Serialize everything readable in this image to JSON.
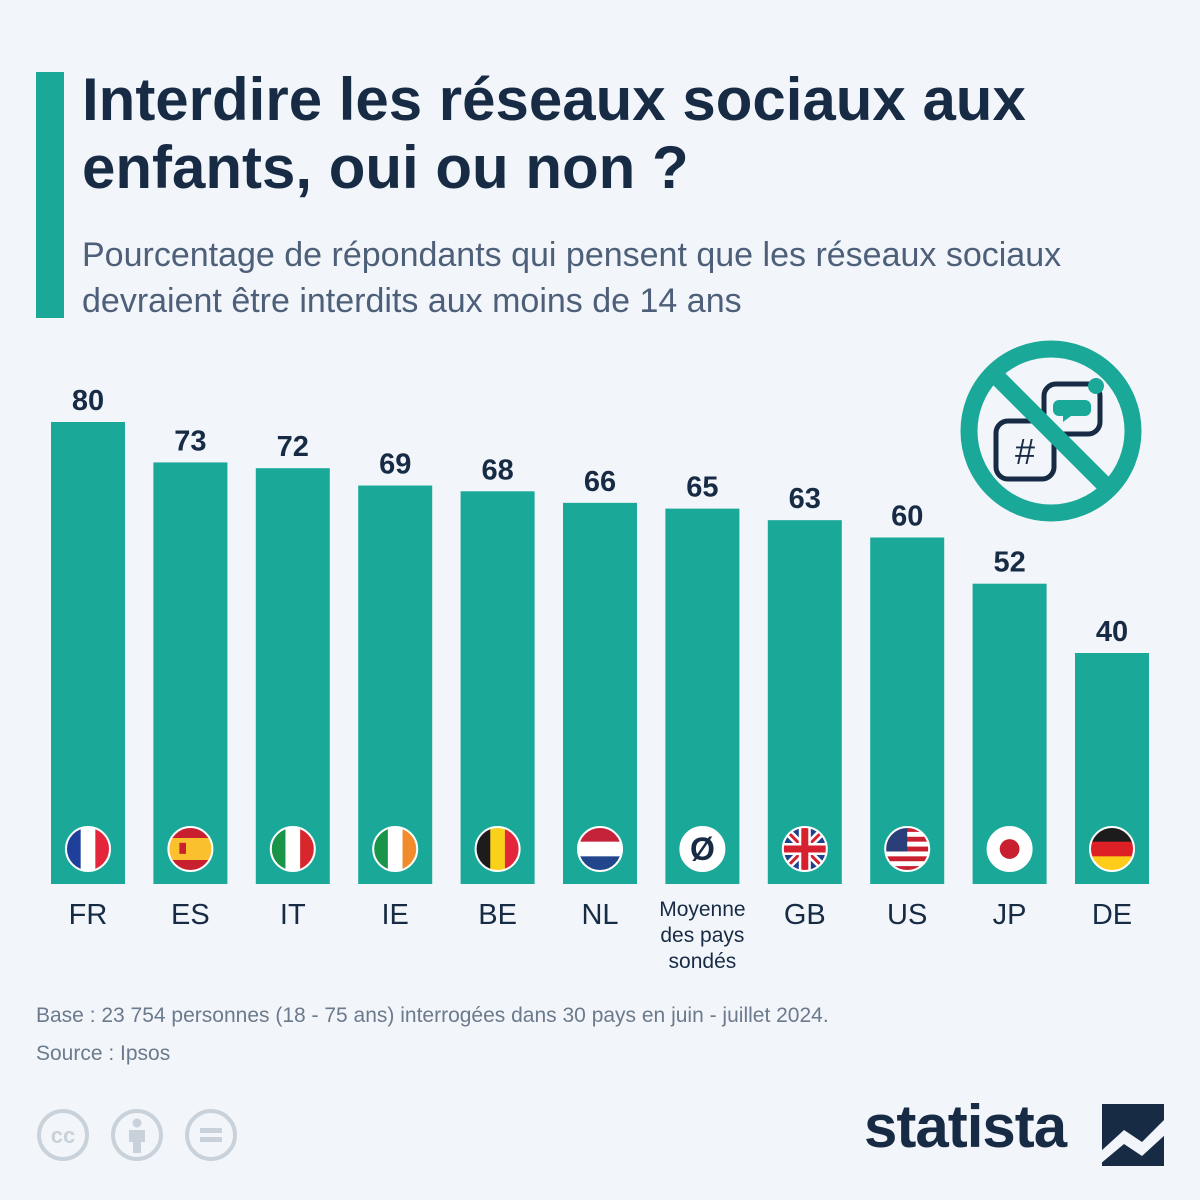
{
  "header": {
    "title": "Interdire les réseaux sociaux aux enfants, oui ou non ?",
    "subtitle": "Pourcentage de répondants qui pensent que les réseaux sociaux devraient être interdits aux moins de 14 ans"
  },
  "icons": {
    "ban_symbol": "no-social-media-icon",
    "hashtag": "#"
  },
  "colors": {
    "bar": "#1aa898",
    "text": "#182b45",
    "subtitle": "#4e6079"
  },
  "chart_data": {
    "type": "bar",
    "categories": [
      "FR",
      "ES",
      "IT",
      "IE",
      "BE",
      "NL",
      "Moyenne des pays sondés",
      "GB",
      "US",
      "JP",
      "DE"
    ],
    "category_lines": [
      [
        "FR"
      ],
      [
        "ES"
      ],
      [
        "IT"
      ],
      [
        "IE"
      ],
      [
        "BE"
      ],
      [
        "NL"
      ],
      [
        "Moyenne",
        "des pays",
        "sondés"
      ],
      [
        "GB"
      ],
      [
        "US"
      ],
      [
        "JP"
      ],
      [
        "DE"
      ]
    ],
    "values": [
      80,
      73,
      72,
      69,
      68,
      66,
      65,
      63,
      60,
      52,
      40
    ],
    "flags": [
      "FR",
      "ES",
      "IT",
      "IE",
      "BE",
      "NL",
      "avg",
      "GB",
      "US",
      "JP",
      "DE"
    ],
    "average_symbol": "Ø",
    "ylim": [
      0,
      80
    ],
    "grid": false,
    "legend": "none"
  },
  "footer": {
    "base": "Base : 23 754 personnes (18 - 75 ans) interrogées dans 30 pays en juin - juillet 2024.",
    "source": "Source : Ipsos",
    "license_icons": [
      "cc-icon",
      "attribution-icon",
      "no-derivatives-icon"
    ],
    "license_cc_text": "cc",
    "brand": "statista"
  }
}
